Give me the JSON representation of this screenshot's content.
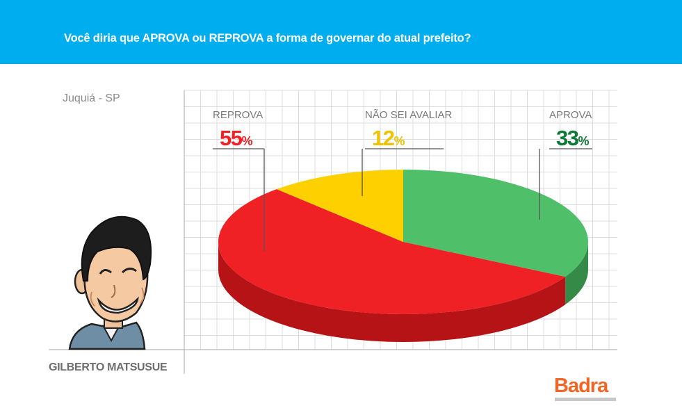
{
  "header": {
    "question": "Você diria que APROVA ou REPROVA a forma de governar do atual prefeito?"
  },
  "region": "Juquiá - SP",
  "person": {
    "name": "GILBERTO MATSUSUE"
  },
  "brand": {
    "name": "Badra"
  },
  "colors": {
    "header_bg": "#00aeef",
    "reprova": "#ef2125",
    "reprova_side": "#b51316",
    "nao_sei": "#ffd000",
    "nao_sei_text": "#f0c300",
    "aprova": "#50bf6a",
    "aprova_side": "#358a47",
    "aprova_text": "#0f7a37",
    "brand": "#f26522"
  },
  "chart_data": {
    "type": "pie",
    "title": "",
    "slices": [
      {
        "label": "REPROVA",
        "value": 55,
        "value_text": "55",
        "unit": "%",
        "color": "#ef2125",
        "side_color": "#b51316",
        "text_color": "#ef2125"
      },
      {
        "label": "NÃO SEI AVALIAR",
        "value": 12,
        "value_text": "12",
        "unit": "%",
        "color": "#ffd000",
        "side_color": "#c9a400",
        "text_color": "#f0c300"
      },
      {
        "label": "APROVA",
        "value": 33,
        "value_text": "33",
        "unit": "%",
        "color": "#50bf6a",
        "side_color": "#358a47",
        "text_color": "#0f7a37"
      }
    ],
    "style": "3d",
    "grid": true
  }
}
